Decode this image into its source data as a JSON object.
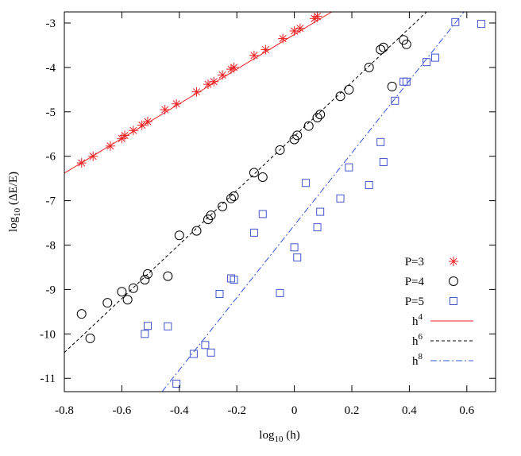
{
  "chart_data": {
    "type": "scatter",
    "xlabel": "log10 (h)",
    "ylabel": "log10 (ΔE/E)",
    "xlim": [
      -0.8,
      0.7
    ],
    "ylim": [
      -11.3,
      -2.75
    ],
    "xticks": [
      -0.8,
      -0.6,
      -0.4,
      -0.2,
      0,
      0.2,
      0.4,
      0.6
    ],
    "xtick_labels": [
      "-0.8",
      "-0.6",
      "-0.4",
      "-0.2",
      "0",
      "0.2",
      "0.4",
      "0.6"
    ],
    "yticks": [
      -11,
      -10,
      -9,
      -8,
      -7,
      -6,
      -5,
      -4,
      -3
    ],
    "ytick_labels": [
      "-11",
      "-10",
      "-9",
      "-8",
      "-7",
      "-6",
      "-5",
      "-4",
      "-3"
    ],
    "grid": false,
    "legend_position": "bottom-right",
    "series": [
      {
        "name": "P=3",
        "kind": "points",
        "marker": "star",
        "color": "#ee2222",
        "points": [
          [
            -0.74,
            -6.15
          ],
          [
            -0.7,
            -6.0
          ],
          [
            -0.64,
            -5.77
          ],
          [
            -0.6,
            -5.6
          ],
          [
            -0.59,
            -5.53
          ],
          [
            -0.56,
            -5.42
          ],
          [
            -0.53,
            -5.3
          ],
          [
            -0.51,
            -5.22
          ],
          [
            -0.45,
            -4.95
          ],
          [
            -0.41,
            -4.82
          ],
          [
            -0.34,
            -4.55
          ],
          [
            -0.3,
            -4.38
          ],
          [
            -0.28,
            -4.32
          ],
          [
            -0.25,
            -4.17
          ],
          [
            -0.22,
            -4.04
          ],
          [
            -0.21,
            -4.0
          ],
          [
            -0.14,
            -3.73
          ],
          [
            -0.1,
            -3.6
          ],
          [
            -0.04,
            -3.35
          ],
          [
            0.0,
            -3.18
          ],
          [
            0.02,
            -3.12
          ],
          [
            0.07,
            -2.9
          ],
          [
            0.08,
            -2.85
          ]
        ]
      },
      {
        "name": "P=4",
        "kind": "points",
        "marker": "circle",
        "color": "#000000",
        "points": [
          [
            -0.74,
            -9.55
          ],
          [
            -0.71,
            -10.1
          ],
          [
            -0.65,
            -9.3
          ],
          [
            -0.6,
            -9.05
          ],
          [
            -0.58,
            -9.23
          ],
          [
            -0.56,
            -8.97
          ],
          [
            -0.52,
            -8.78
          ],
          [
            -0.51,
            -8.65
          ],
          [
            -0.44,
            -8.7
          ],
          [
            -0.4,
            -7.78
          ],
          [
            -0.34,
            -7.68
          ],
          [
            -0.3,
            -7.42
          ],
          [
            -0.29,
            -7.33
          ],
          [
            -0.25,
            -7.13
          ],
          [
            -0.22,
            -6.95
          ],
          [
            -0.21,
            -6.9
          ],
          [
            -0.14,
            -6.37
          ],
          [
            -0.11,
            -6.47
          ],
          [
            -0.05,
            -5.86
          ],
          [
            0.0,
            -5.62
          ],
          [
            0.01,
            -5.53
          ],
          [
            0.05,
            -5.32
          ],
          [
            0.08,
            -5.13
          ],
          [
            0.09,
            -5.06
          ],
          [
            0.16,
            -4.65
          ],
          [
            0.19,
            -4.5
          ],
          [
            0.26,
            -4.0
          ],
          [
            0.3,
            -3.6
          ],
          [
            0.31,
            -3.55
          ],
          [
            0.34,
            -4.43
          ],
          [
            0.38,
            -3.38
          ],
          [
            0.39,
            -3.48
          ]
        ]
      },
      {
        "name": "P=5",
        "kind": "points",
        "marker": "square",
        "color": "#4455cc",
        "points": [
          [
            -0.52,
            -10.0
          ],
          [
            -0.51,
            -9.82
          ],
          [
            -0.44,
            -9.83
          ],
          [
            -0.41,
            -11.12
          ],
          [
            -0.35,
            -10.45
          ],
          [
            -0.31,
            -10.25
          ],
          [
            -0.29,
            -10.42
          ],
          [
            -0.26,
            -9.1
          ],
          [
            -0.22,
            -8.75
          ],
          [
            -0.21,
            -8.78
          ],
          [
            -0.14,
            -7.72
          ],
          [
            -0.11,
            -7.3
          ],
          [
            -0.05,
            -9.08
          ],
          [
            0.0,
            -8.05
          ],
          [
            0.01,
            -8.28
          ],
          [
            0.04,
            -6.6
          ],
          [
            0.08,
            -7.6
          ],
          [
            0.09,
            -7.25
          ],
          [
            0.16,
            -6.95
          ],
          [
            0.19,
            -6.25
          ],
          [
            0.26,
            -6.65
          ],
          [
            0.3,
            -5.68
          ],
          [
            0.31,
            -6.13
          ],
          [
            0.35,
            -4.75
          ],
          [
            0.38,
            -4.32
          ],
          [
            0.39,
            -4.32
          ],
          [
            0.46,
            -3.88
          ],
          [
            0.49,
            -3.78
          ],
          [
            0.56,
            -2.98
          ],
          [
            0.65,
            -3.02
          ]
        ]
      },
      {
        "name": "h⁴",
        "kind": "line",
        "style": "solid",
        "color": "#ee2222",
        "points": [
          [
            -0.8,
            -6.38
          ],
          [
            0.13,
            -2.75
          ]
        ]
      },
      {
        "name": "h⁶",
        "kind": "line",
        "style": "dashed",
        "color": "#000000",
        "points": [
          [
            -0.8,
            -10.42
          ],
          [
            0.46,
            -2.75
          ]
        ]
      },
      {
        "name": "h⁸",
        "kind": "line",
        "style": "dashdot",
        "color": "#3355dd",
        "points": [
          [
            -0.46,
            -11.3
          ],
          [
            0.59,
            -2.75
          ]
        ]
      }
    ]
  },
  "legend": {
    "items": [
      {
        "label": "P=3"
      },
      {
        "label": "P=4"
      },
      {
        "label": "P=5"
      },
      {
        "label_base": "h",
        "label_exp": "4"
      },
      {
        "label_base": "h",
        "label_exp": "6"
      },
      {
        "label_base": "h",
        "label_exp": "8"
      }
    ]
  },
  "axis_text": {
    "x_base": "log",
    "x_sub": "10",
    "x_rest": " (h)",
    "y_base": "log",
    "y_sub": "10",
    "y_rest": " (ΔE/E)"
  }
}
